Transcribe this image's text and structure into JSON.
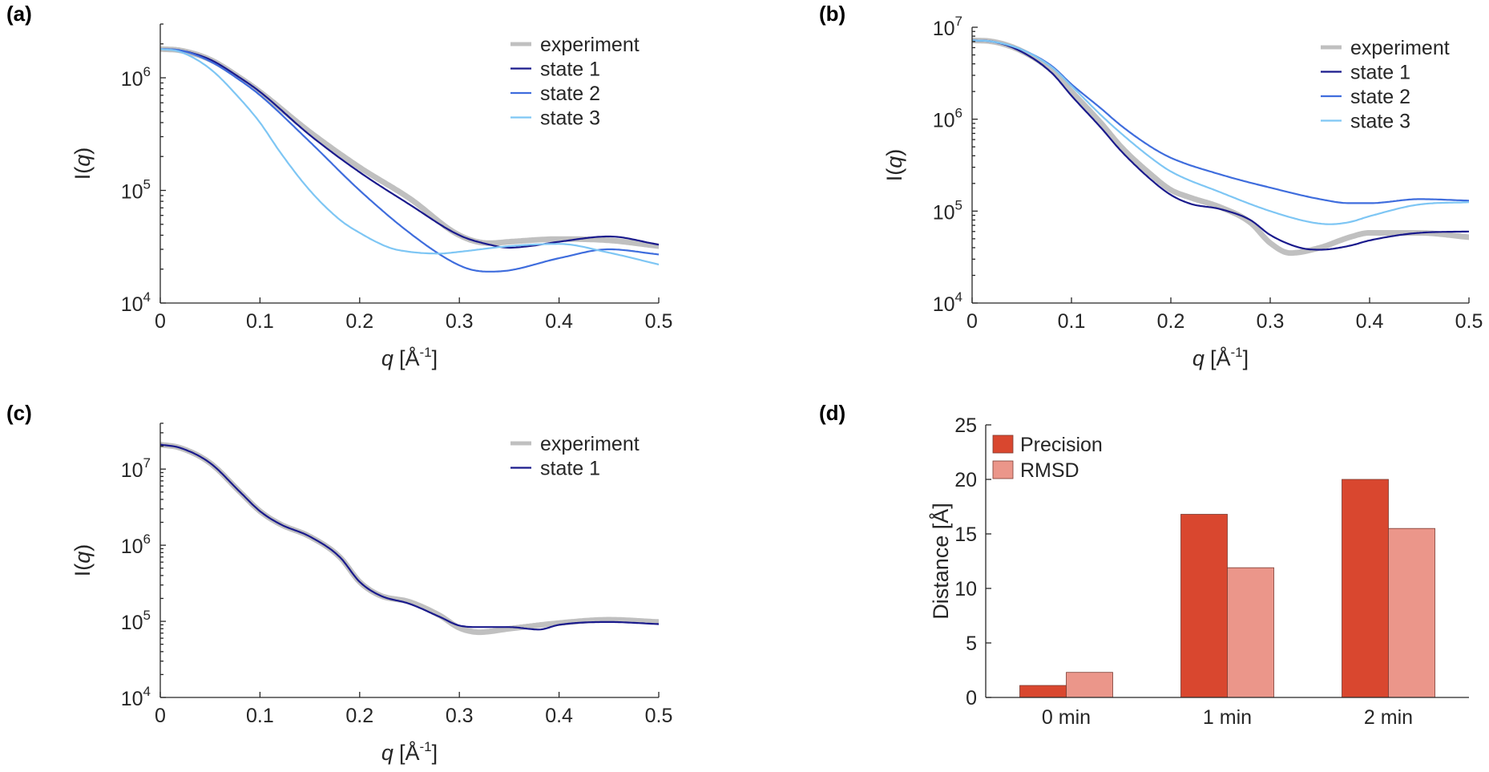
{
  "colors": {
    "experiment": "#c0c0c0",
    "state1": "#1a1a8c",
    "state2": "#3f6ddd",
    "state3": "#7ec6f4",
    "precision": "#d9472f",
    "rmsd": "#eb968a"
  },
  "chart_data": [
    {
      "panel": "(a)",
      "type": "line",
      "xlabel_var": "q",
      "xlabel_unit": "[Å",
      "xlabel_exp": "-1",
      "xlabel_close": "]",
      "ylabel_pre": "I(",
      "ylabel_var": "q",
      "ylabel_post": ")",
      "xlim": [
        0,
        0.5
      ],
      "ylim": [
        10000,
        3000000
      ],
      "yscale": "log",
      "x_ticks": [
        "0",
        "0.1",
        "0.2",
        "0.3",
        "0.4",
        "0.5"
      ],
      "y_ticks": [
        {
          "base": "10",
          "exp": "4",
          "value": 10000
        },
        {
          "base": "10",
          "exp": "5",
          "value": 100000
        },
        {
          "base": "10",
          "exp": "6",
          "value": 1000000
        }
      ],
      "legend_location": "top-right",
      "series": [
        {
          "name": "experiment",
          "x": [
            0,
            0.02,
            0.05,
            0.08,
            0.1,
            0.15,
            0.2,
            0.25,
            0.3,
            0.33,
            0.35,
            0.4,
            0.45,
            0.5
          ],
          "y": [
            1800000,
            1750000,
            1450000,
            1000000,
            750000,
            330000,
            160000,
            85000,
            40000,
            34000,
            35000,
            37000,
            36000,
            32000
          ]
        },
        {
          "name": "state 1",
          "x": [
            0,
            0.02,
            0.05,
            0.08,
            0.1,
            0.15,
            0.2,
            0.25,
            0.3,
            0.33,
            0.35,
            0.37,
            0.4,
            0.45,
            0.5
          ],
          "y": [
            1800000,
            1750000,
            1450000,
            1000000,
            750000,
            310000,
            145000,
            75000,
            40000,
            33000,
            31000,
            32000,
            35000,
            39000,
            33000
          ]
        },
        {
          "name": "state 2",
          "x": [
            0,
            0.02,
            0.05,
            0.08,
            0.1,
            0.15,
            0.2,
            0.25,
            0.29,
            0.31,
            0.33,
            0.35,
            0.4,
            0.45,
            0.5
          ],
          "y": [
            1800000,
            1750000,
            1400000,
            950000,
            700000,
            270000,
            100000,
            42000,
            24000,
            20000,
            19000,
            19500,
            25000,
            30000,
            27000
          ]
        },
        {
          "name": "state 3",
          "x": [
            0,
            0.02,
            0.05,
            0.08,
            0.1,
            0.12,
            0.15,
            0.18,
            0.2,
            0.23,
            0.25,
            0.28,
            0.3,
            0.35,
            0.4,
            0.45,
            0.5
          ],
          "y": [
            1800000,
            1700000,
            1200000,
            650000,
            400000,
            220000,
            100000,
            55000,
            42000,
            31000,
            28500,
            27500,
            28500,
            32000,
            33500,
            28000,
            22000
          ]
        }
      ]
    },
    {
      "panel": "(b)",
      "type": "line",
      "xlabel_var": "q",
      "xlabel_unit": "[Å",
      "xlabel_exp": "-1",
      "xlabel_close": "]",
      "ylabel_pre": "I(",
      "ylabel_var": "q",
      "ylabel_post": ")",
      "xlim": [
        0,
        0.5
      ],
      "ylim": [
        10000,
        10000000
      ],
      "yscale": "log",
      "x_ticks": [
        "0",
        "0.1",
        "0.2",
        "0.3",
        "0.4",
        "0.5"
      ],
      "y_ticks": [
        {
          "base": "10",
          "exp": "4",
          "value": 10000
        },
        {
          "base": "10",
          "exp": "5",
          "value": 100000
        },
        {
          "base": "10",
          "exp": "6",
          "value": 1000000
        },
        {
          "base": "10",
          "exp": "7",
          "value": 10000000
        }
      ],
      "legend_location": "top-right",
      "series": [
        {
          "name": "experiment",
          "x": [
            0,
            0.02,
            0.05,
            0.08,
            0.1,
            0.13,
            0.15,
            0.18,
            0.2,
            0.22,
            0.25,
            0.28,
            0.3,
            0.32,
            0.35,
            0.38,
            0.4,
            0.45,
            0.5
          ],
          "y": [
            7200000,
            7000000,
            5500000,
            3400000,
            2000000,
            900000,
            500000,
            250000,
            170000,
            140000,
            110000,
            75000,
            45000,
            35000,
            40000,
            52000,
            58000,
            58000,
            52000
          ]
        },
        {
          "name": "state 1",
          "x": [
            0,
            0.02,
            0.05,
            0.08,
            0.1,
            0.13,
            0.15,
            0.18,
            0.2,
            0.22,
            0.25,
            0.28,
            0.3,
            0.33,
            0.35,
            0.38,
            0.4,
            0.45,
            0.5
          ],
          "y": [
            7200000,
            7000000,
            5400000,
            3200000,
            1800000,
            800000,
            450000,
            220000,
            150000,
            120000,
            105000,
            80000,
            55000,
            40000,
            38000,
            42000,
            48000,
            58000,
            60000
          ]
        },
        {
          "name": "state 2",
          "x": [
            0,
            0.02,
            0.05,
            0.08,
            0.1,
            0.13,
            0.15,
            0.18,
            0.2,
            0.25,
            0.3,
            0.35,
            0.38,
            0.4,
            0.45,
            0.5
          ],
          "y": [
            7200000,
            7000000,
            5700000,
            3800000,
            2400000,
            1300000,
            850000,
            500000,
            380000,
            250000,
            180000,
            135000,
            122000,
            122000,
            135000,
            130000
          ]
        },
        {
          "name": "state 3",
          "x": [
            0,
            0.02,
            0.05,
            0.08,
            0.1,
            0.13,
            0.15,
            0.18,
            0.2,
            0.25,
            0.3,
            0.34,
            0.36,
            0.38,
            0.4,
            0.45,
            0.5
          ],
          "y": [
            7200000,
            7000000,
            5700000,
            3700000,
            2300000,
            1100000,
            700000,
            380000,
            270000,
            160000,
            100000,
            76000,
            72000,
            76000,
            88000,
            118000,
            125000
          ]
        }
      ]
    },
    {
      "panel": "(c)",
      "type": "line",
      "xlabel_var": "q",
      "xlabel_unit": "[Å",
      "xlabel_exp": "-1",
      "xlabel_close": "]",
      "ylabel_pre": "I(",
      "ylabel_var": "q",
      "ylabel_post": ")",
      "xlim": [
        0,
        0.5
      ],
      "ylim": [
        10000,
        40000000
      ],
      "yscale": "log",
      "x_ticks": [
        "0",
        "0.1",
        "0.2",
        "0.3",
        "0.4",
        "0.5"
      ],
      "y_ticks": [
        {
          "base": "10",
          "exp": "4",
          "value": 10000
        },
        {
          "base": "10",
          "exp": "5",
          "value": 100000
        },
        {
          "base": "10",
          "exp": "6",
          "value": 1000000
        },
        {
          "base": "10",
          "exp": "7",
          "value": 10000000
        }
      ],
      "legend_location": "top-right",
      "series": [
        {
          "name": "experiment",
          "x": [
            0,
            0.02,
            0.05,
            0.08,
            0.1,
            0.12,
            0.15,
            0.18,
            0.2,
            0.22,
            0.25,
            0.28,
            0.3,
            0.32,
            0.35,
            0.4,
            0.45,
            0.5
          ],
          "y": [
            21000000,
            19000000,
            12000000,
            5000000,
            2800000,
            1900000,
            1300000,
            700000,
            330000,
            220000,
            180000,
            120000,
            82000,
            72000,
            80000,
            95000,
            105000,
            98000
          ]
        },
        {
          "name": "state 1",
          "x": [
            0,
            0.02,
            0.05,
            0.08,
            0.1,
            0.12,
            0.15,
            0.18,
            0.2,
            0.22,
            0.25,
            0.28,
            0.3,
            0.32,
            0.35,
            0.38,
            0.4,
            0.45,
            0.5
          ],
          "y": [
            21000000,
            19000000,
            12000000,
            5000000,
            2800000,
            1900000,
            1300000,
            700000,
            330000,
            220000,
            170000,
            115000,
            88000,
            84000,
            84000,
            78000,
            90000,
            98000,
            92000
          ]
        }
      ]
    },
    {
      "panel": "(d)",
      "type": "bar",
      "ylabel": "Distance [Å]",
      "categories": [
        "0 min",
        "1 min",
        "2 min"
      ],
      "ylim": [
        0,
        25
      ],
      "y_ticks": [
        "0",
        "5",
        "10",
        "15",
        "20",
        "25"
      ],
      "legend_location": "top-left",
      "series": [
        {
          "name": "Precision",
          "values": [
            1.1,
            16.8,
            20.0
          ]
        },
        {
          "name": "RMSD",
          "values": [
            2.3,
            11.9,
            15.5
          ]
        }
      ]
    }
  ]
}
